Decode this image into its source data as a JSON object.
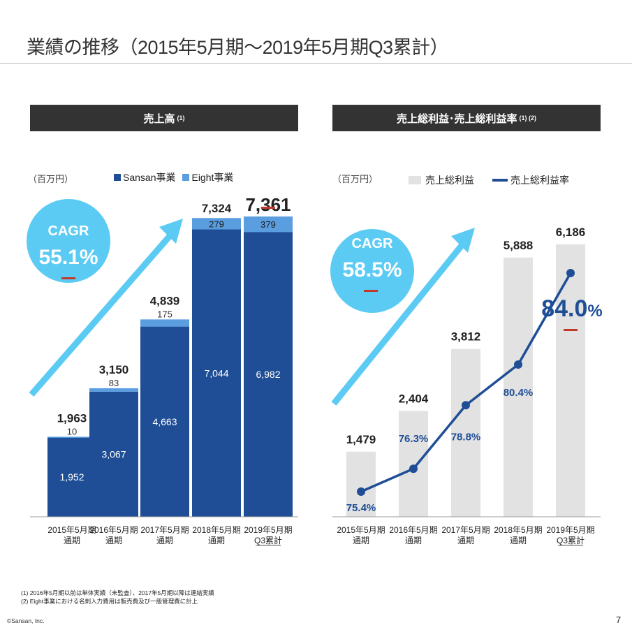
{
  "page": {
    "title": "業績の推移（2015年5月期～2019年5月期Q3累計）",
    "footnotes": [
      "(1) 2016年5月期以前は単体実績（未監査）、2017年5月期以降は連結実績",
      "(2) Eight事業における名刺入力費用は販売費及び一般管理費に計上"
    ],
    "copyright": "©Sansan, Inc.",
    "page_number": "7"
  },
  "colors": {
    "sansan": "#1f4e96",
    "eight": "#5b9ee0",
    "gross": "#e2e2e2",
    "margin_line": "#1f4e96",
    "cagr_circle": "#5ccbf3",
    "arrow": "#5ccbf3",
    "dash": "#c0392b"
  },
  "chart_data": [
    {
      "type": "bar",
      "stacked": true,
      "title": "売上高",
      "title_sup": "(1)",
      "unit": "（百万円）",
      "categories": [
        "2015年5月期|通期",
        "2016年5月期|通期",
        "2017年5月期|通期",
        "2018年5月期|通期",
        "2019年5月期|Q3累計"
      ],
      "series": [
        {
          "name": "Sansan事業",
          "values": [
            1952,
            3067,
            4663,
            7044,
            6982
          ]
        },
        {
          "name": "Eight事業",
          "values": [
            10,
            83,
            175,
            279,
            379
          ]
        }
      ],
      "totals": [
        1963,
        3150,
        4839,
        7324,
        7361
      ],
      "ylim": [
        0,
        7700
      ],
      "cagr": {
        "label": "CAGR",
        "value": "55.1%"
      }
    },
    {
      "type": "bar+line",
      "title": "売上総利益･売上総利益率",
      "title_sup": "(1) (2)",
      "unit": "（百万円）",
      "categories": [
        "2015年5月期|通期",
        "2016年5月期|通期",
        "2017年5月期|通期",
        "2018年5月期|通期",
        "2019年5月期|Q3累計"
      ],
      "series": [
        {
          "name": "売上総利益",
          "type": "bar",
          "values": [
            1479,
            2404,
            3812,
            5888,
            6186
          ]
        },
        {
          "name": "売上総利益率",
          "type": "line",
          "unit": "%",
          "values": [
            75.4,
            76.3,
            78.8,
            80.4,
            84.0
          ]
        }
      ],
      "ylim": [
        0,
        6800
      ],
      "line_ylim": [
        72,
        86
      ],
      "cagr": {
        "label": "CAGR",
        "value": "58.5%"
      }
    }
  ]
}
